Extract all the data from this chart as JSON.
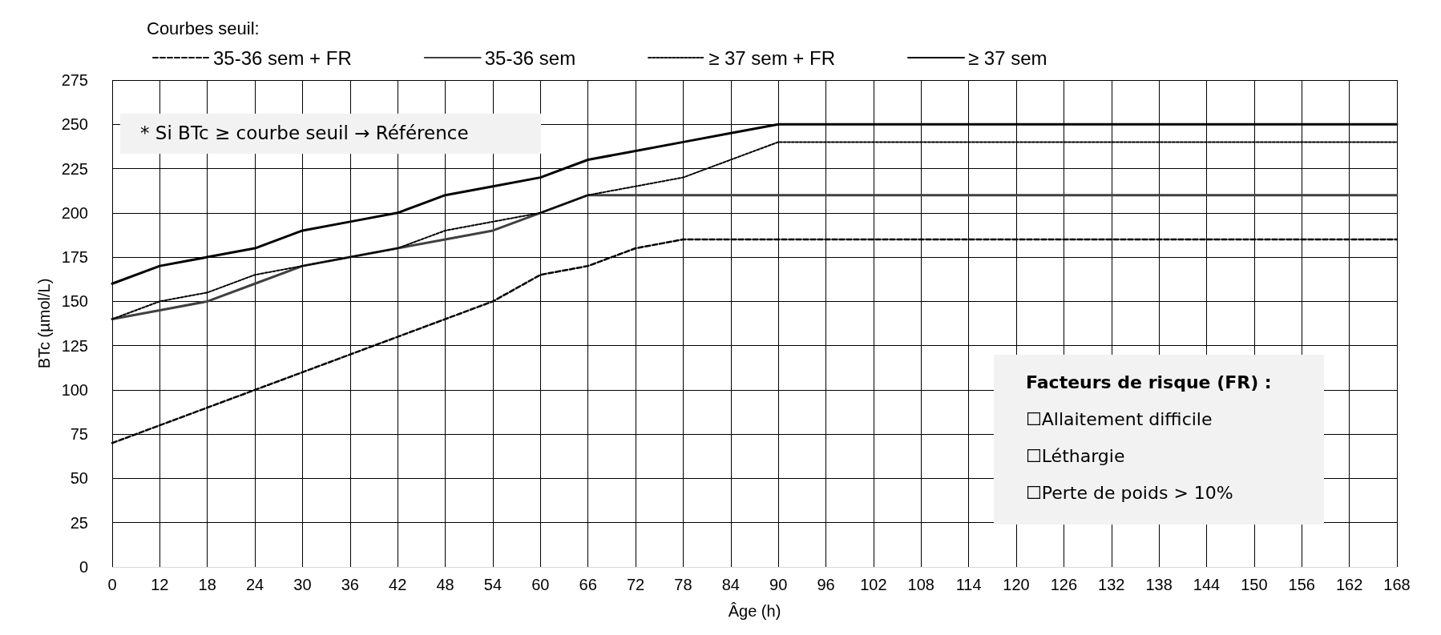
{
  "chart_data": {
    "type": "line",
    "legend_title": "Courbes seuil:",
    "xlabel": "Âge (h)",
    "ylabel": "BTc (µmol/L)",
    "categories": [
      "0",
      "12",
      "18",
      "24",
      "30",
      "36",
      "42",
      "48",
      "54",
      "60",
      "66",
      "72",
      "78",
      "84",
      "90",
      "96",
      "102",
      "108",
      "114",
      "120",
      "126",
      "132",
      "138",
      "144",
      "150",
      "156",
      "162",
      "168"
    ],
    "series": [
      {
        "name": "35-36 sem + FR",
        "color": "#000000",
        "line_style": "dashed",
        "values": [
          70,
          80,
          90,
          100,
          110,
          120,
          130,
          140,
          150,
          165,
          170,
          180,
          185,
          185,
          185,
          185,
          185,
          185,
          185,
          185,
          185,
          185,
          185,
          185,
          185,
          185,
          185,
          185
        ]
      },
      {
        "name": "35-36 sem",
        "color": "#404040",
        "line_style": "solid",
        "values": [
          140,
          145,
          150,
          160,
          170,
          175,
          180,
          185,
          190,
          200,
          210,
          210,
          210,
          210,
          210,
          210,
          210,
          210,
          210,
          210,
          210,
          210,
          210,
          210,
          210,
          210,
          210,
          210
        ]
      },
      {
        "name": "≥ 37 sem + FR",
        "color": "#000000",
        "line_style": "dotted",
        "values": [
          140,
          150,
          155,
          165,
          170,
          175,
          180,
          190,
          195,
          200,
          210,
          215,
          220,
          230,
          240,
          240,
          240,
          240,
          240,
          240,
          240,
          240,
          240,
          240,
          240,
          240,
          240,
          240
        ]
      },
      {
        "name": "≥ 37 sem",
        "color": "#000000",
        "line_style": "solid",
        "values": [
          160,
          170,
          175,
          180,
          190,
          195,
          200,
          210,
          215,
          220,
          230,
          235,
          240,
          245,
          250,
          250,
          250,
          250,
          250,
          250,
          250,
          250,
          250,
          250,
          250,
          250,
          250,
          250
        ]
      }
    ],
    "ylim": [
      0,
      275
    ],
    "yticks": [
      0,
      25,
      50,
      75,
      100,
      125,
      150,
      175,
      200,
      225,
      250,
      275
    ],
    "grid": true,
    "legend": "top",
    "marker": "none",
    "annotations": [
      "* Si BTc ≥ courbe seuil → Référence",
      "Facteurs de risque (FR) :",
      "☐Allaitement difficile",
      "☐Léthargie",
      "☐Perte de poids > 10%"
    ]
  }
}
